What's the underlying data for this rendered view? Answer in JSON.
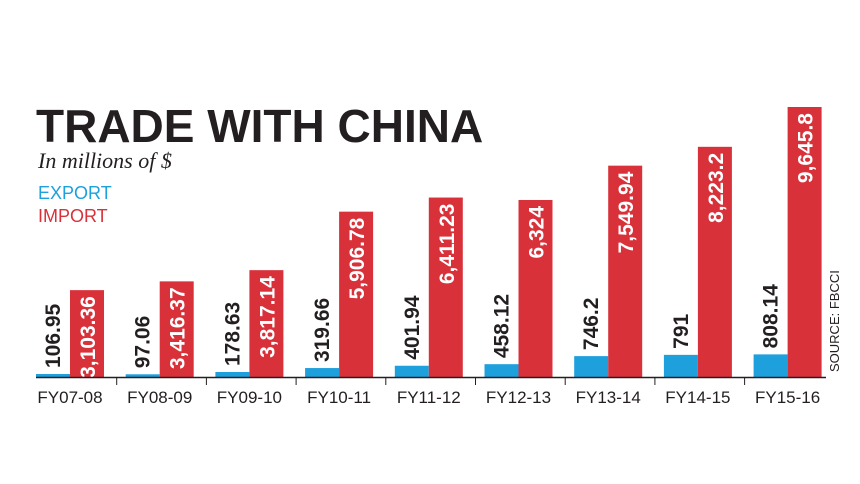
{
  "chart_data": {
    "type": "bar",
    "title": "TRADE WITH CHINA",
    "subtitle": "In millions of $",
    "categories": [
      "FY07-08",
      "FY08-09",
      "FY09-10",
      "FY10-11",
      "FY11-12",
      "FY12-13",
      "FY13-14",
      "FY14-15",
      "FY15-16"
    ],
    "series": [
      {
        "name": "EXPORT",
        "color": "#1ea0dc",
        "values": [
          106.95,
          97.06,
          178.63,
          319.66,
          401.94,
          458.12,
          746.2,
          791,
          808.14
        ],
        "labels": [
          "106.95",
          "97.06",
          "178.63",
          "319.66",
          "401.94",
          "458.12",
          "746.2",
          "791",
          "808.14"
        ]
      },
      {
        "name": "IMPORT",
        "color": "#d9313a",
        "values": [
          3103.36,
          3416.37,
          3817.14,
          5906.78,
          6411.23,
          6324,
          7549.94,
          8223.2,
          9645.8
        ],
        "labels": [
          "3,103.36",
          "3,416.37",
          "3,817.14",
          "5,906.78",
          "6,411.23",
          "6,324",
          "7,549.94",
          "8,223.2",
          "9,645.8"
        ]
      }
    ],
    "ylim": [
      0,
      9645.8
    ],
    "grid": false,
    "legend_placement": "top-left",
    "source": "SOURCE: FBCCI"
  }
}
